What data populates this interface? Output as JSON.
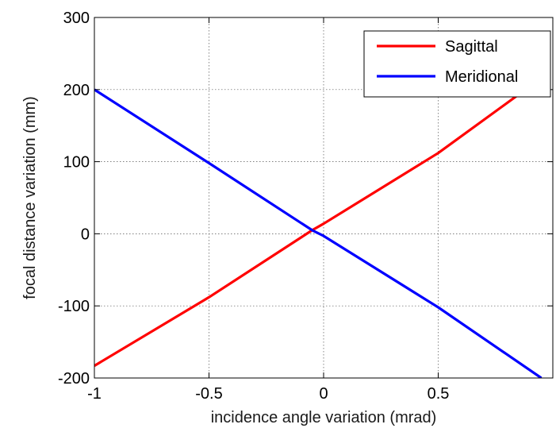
{
  "chart_data": {
    "type": "line",
    "xlabel": "incidence angle variation (mrad)",
    "ylabel": "focal distance variation (mm)",
    "xlim": [
      -1,
      1
    ],
    "ylim": [
      -200,
      300
    ],
    "xticks": [
      -1,
      -0.5,
      0,
      0.5,
      1
    ],
    "xtick_labels": [
      "-1",
      "-0.5",
      "0",
      "0.5",
      ""
    ],
    "yticks": [
      -200,
      -100,
      0,
      100,
      200,
      300
    ],
    "ytick_labels": [
      "-200",
      "-100",
      "0",
      "100",
      "200",
      "300"
    ],
    "grid": true,
    "legend_position": "top-right",
    "series": [
      {
        "name": "Sagittal",
        "color": "#ff0000",
        "x": [
          -1,
          -0.5,
          -0.05,
          0,
          0.5,
          0.95
        ],
        "y": [
          -183,
          -88,
          5,
          14,
          112,
          216
        ]
      },
      {
        "name": "Meridional",
        "color": "#0000ff",
        "x": [
          -1,
          -0.5,
          -0.05,
          0,
          0.5,
          0.95
        ],
        "y": [
          200,
          98,
          5,
          -3,
          -102,
          -200
        ]
      }
    ]
  }
}
